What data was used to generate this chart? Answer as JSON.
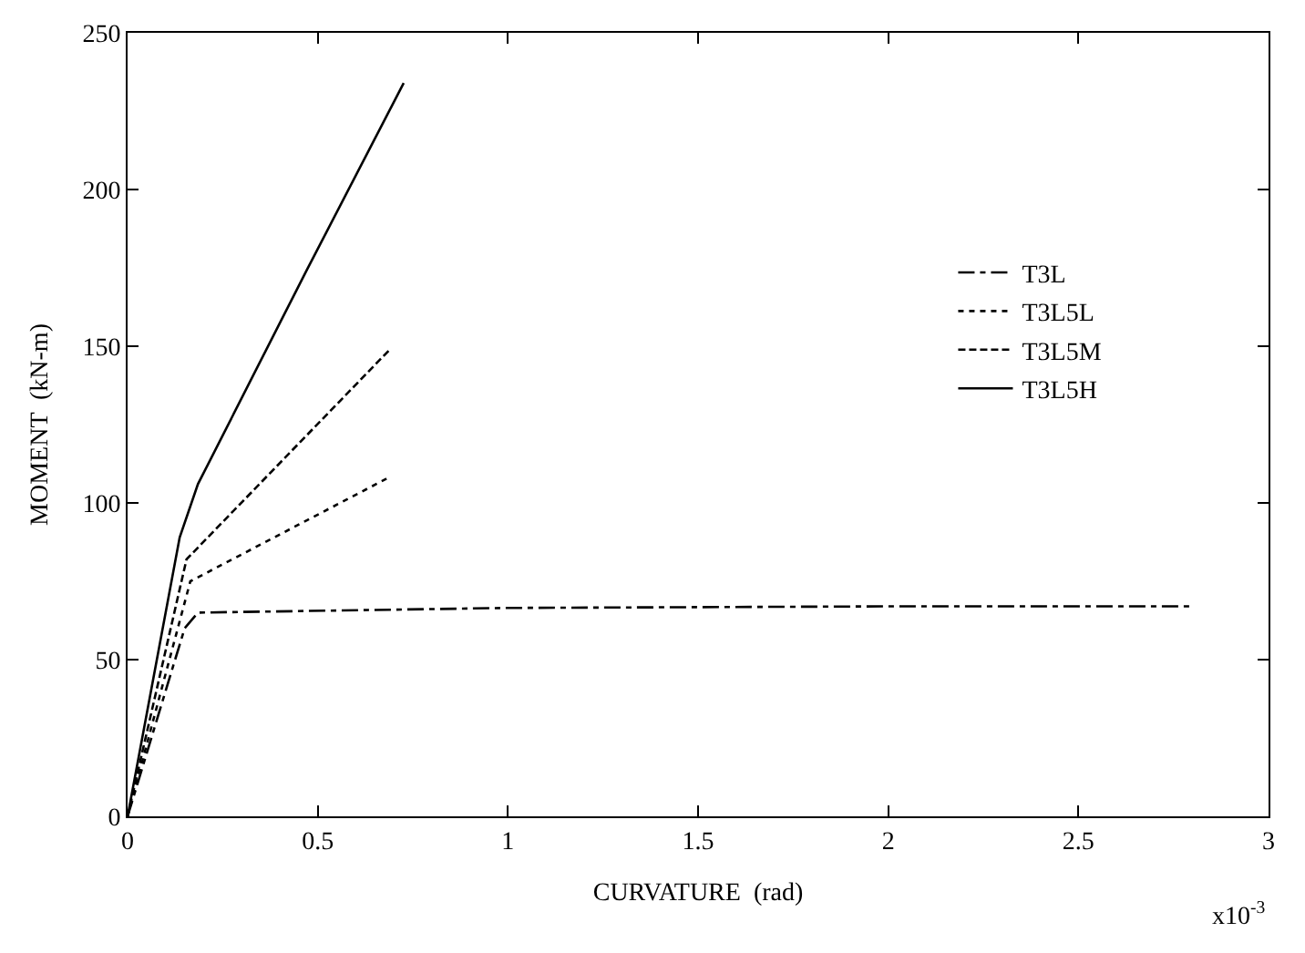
{
  "chart_data": {
    "type": "line",
    "xlabel": "CURVATURE  (rad)",
    "ylabel": "MOMENT  (kN-m)",
    "annotations": [
      "x10$^{-3}$"
    ],
    "xlim": [
      0,
      3
    ],
    "xticks": [
      0,
      0.5,
      1,
      1.5,
      2,
      2.5,
      3
    ],
    "ylim": [
      0,
      250
    ],
    "yticks": [
      0,
      50,
      100,
      150,
      200,
      250
    ],
    "legend": "right",
    "marker": "none",
    "series": [
      {
        "name": "T3L",
        "color": "#000000",
        "line_style": "dashdot",
        "x": [
          0,
          0.15,
          0.185,
          1,
          2,
          2.8
        ],
        "values": [
          0,
          60,
          65,
          66.5,
          67,
          67
        ]
      },
      {
        "name": "T3L5L",
        "color": "#000000",
        "line_style": "dotted",
        "x": [
          0,
          0.165,
          0.685
        ],
        "values": [
          0,
          75,
          108
        ]
      },
      {
        "name": "T3L5M",
        "color": "#000000",
        "line_style": "dashed",
        "x": [
          0,
          0.155,
          0.69
        ],
        "values": [
          0,
          82,
          149
        ]
      },
      {
        "name": "T3L5H",
        "color": "#000000",
        "line_style": "solid",
        "x": [
          0,
          0.137,
          0.185,
          0.47,
          0.726
        ],
        "values": [
          0,
          89,
          106,
          174,
          234
        ]
      }
    ]
  }
}
